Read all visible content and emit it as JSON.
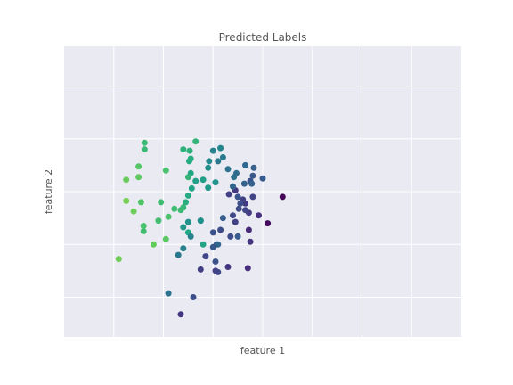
{
  "chart_data": {
    "type": "scatter",
    "title": "Predicted Labels",
    "xlabel": "feature 1",
    "ylabel": "feature 2",
    "grid": true,
    "tick_labels_visible": false,
    "colormap": "viridis",
    "points": [
      {
        "x": 1.4,
        "y": 5.8,
        "c": 0.02
      },
      {
        "x": 1.1,
        "y": 4.8,
        "c": 0.04
      },
      {
        "x": 0.92,
        "y": 5.1,
        "c": 0.18
      },
      {
        "x": 0.72,
        "y": 4.55,
        "c": 0.14
      },
      {
        "x": 0.65,
        "y": 5.55,
        "c": 0.21
      },
      {
        "x": 0.45,
        "y": 4.85,
        "c": 0.24
      },
      {
        "x": 0.4,
        "y": 5.1,
        "c": 0.27
      },
      {
        "x": 0.15,
        "y": 4.55,
        "c": 0.29
      },
      {
        "x": 0.0,
        "y": 4.45,
        "c": 0.32
      },
      {
        "x": 0.0,
        "y": 3.9,
        "c": 0.35
      },
      {
        "x": 0.07,
        "y": 4.0,
        "c": 0.33
      },
      {
        "x": 0.32,
        "y": 5.9,
        "c": 0.24
      },
      {
        "x": 0.45,
        "y": 6.05,
        "c": 0.21
      },
      {
        "x": 0.6,
        "y": 5.7,
        "c": 0.23
      },
      {
        "x": 0.8,
        "y": 5.8,
        "c": 0.25
      },
      {
        "x": 0.72,
        "y": 5.2,
        "c": 0.22
      },
      {
        "x": 0.65,
        "y": 5.3,
        "c": 0.26
      },
      {
        "x": 0.52,
        "y": 5.35,
        "c": 0.28
      },
      {
        "x": 0.55,
        "y": 5.55,
        "c": 0.3
      },
      {
        "x": 0.5,
        "y": 5.8,
        "c": 0.33
      },
      {
        "x": 0.2,
        "y": 5.0,
        "c": 0.37
      },
      {
        "x": 0.75,
        "y": 6.4,
        "c": 0.31
      },
      {
        "x": 0.8,
        "y": 6.6,
        "c": 0.34
      },
      {
        "x": 1.0,
        "y": 6.5,
        "c": 0.36
      },
      {
        "x": 0.82,
        "y": 6.9,
        "c": 0.38
      },
      {
        "x": 0.65,
        "y": 7.0,
        "c": 0.43
      },
      {
        "x": 0.78,
        "y": 6.3,
        "c": 0.39
      },
      {
        "x": 0.63,
        "y": 6.3,
        "c": 0.4
      },
      {
        "x": 0.4,
        "y": 6.2,
        "c": 0.42
      },
      {
        "x": 0.47,
        "y": 6.7,
        "c": 0.44
      },
      {
        "x": 0.42,
        "y": 6.55,
        "c": 0.46
      },
      {
        "x": 0.3,
        "y": 6.85,
        "c": 0.48
      },
      {
        "x": 0.1,
        "y": 7.15,
        "c": 0.5
      },
      {
        "x": 0.2,
        "y": 7.3,
        "c": 0.52
      },
      {
        "x": 0.0,
        "y": 7.55,
        "c": 0.55
      },
      {
        "x": 0.15,
        "y": 7.65,
        "c": 0.57
      },
      {
        "x": -0.08,
        "y": 7.15,
        "c": 0.6
      },
      {
        "x": -0.1,
        "y": 6.9,
        "c": 0.62
      },
      {
        "x": 0.05,
        "y": 6.35,
        "c": 0.65
      },
      {
        "x": -0.1,
        "y": 6.15,
        "c": 0.67
      },
      {
        "x": -0.2,
        "y": 6.45,
        "c": 0.69
      },
      {
        "x": -0.35,
        "y": 6.4,
        "c": 0.71
      },
      {
        "x": -0.43,
        "y": 6.12,
        "c": 0.73
      },
      {
        "x": -0.45,
        "y": 6.7,
        "c": 0.74
      },
      {
        "x": -0.48,
        "y": 7.15,
        "c": 0.76
      },
      {
        "x": -0.45,
        "y": 7.25,
        "c": 0.78
      },
      {
        "x": -0.47,
        "y": 7.55,
        "c": 0.8
      },
      {
        "x": -0.35,
        "y": 7.9,
        "c": 0.82
      },
      {
        "x": -0.6,
        "y": 7.6,
        "c": 0.8
      },
      {
        "x": -0.5,
        "y": 6.55,
        "c": 0.82
      },
      {
        "x": -0.5,
        "y": 5.85,
        "c": 0.76
      },
      {
        "x": -0.55,
        "y": 5.6,
        "c": 0.78
      },
      {
        "x": -0.6,
        "y": 5.4,
        "c": 0.83
      },
      {
        "x": -0.65,
        "y": 5.3,
        "c": 0.85
      },
      {
        "x": -0.78,
        "y": 5.35,
        "c": 0.87
      },
      {
        "x": -0.9,
        "y": 5.05,
        "c": 0.9
      },
      {
        "x": -1.05,
        "y": 5.6,
        "c": 0.86
      },
      {
        "x": -1.1,
        "y": 4.9,
        "c": 0.88
      },
      {
        "x": -0.95,
        "y": 4.2,
        "c": 0.93
      },
      {
        "x": -1.2,
        "y": 4.0,
        "c": 0.95
      },
      {
        "x": -1.9,
        "y": 3.45,
        "c": 0.98
      },
      {
        "x": -1.6,
        "y": 5.25,
        "c": 0.97
      },
      {
        "x": -1.75,
        "y": 5.65,
        "c": 0.99
      },
      {
        "x": -1.75,
        "y": 6.45,
        "c": 0.96
      },
      {
        "x": -1.5,
        "y": 6.55,
        "c": 0.94
      },
      {
        "x": -1.5,
        "y": 6.95,
        "c": 0.92
      },
      {
        "x": -1.45,
        "y": 5.6,
        "c": 0.91
      },
      {
        "x": -1.4,
        "y": 4.7,
        "c": 0.89
      },
      {
        "x": -1.4,
        "y": 4.5,
        "c": 0.87
      },
      {
        "x": -1.38,
        "y": 7.6,
        "c": 0.84
      },
      {
        "x": -1.38,
        "y": 7.85,
        "c": 0.85
      },
      {
        "x": -0.95,
        "y": 6.8,
        "c": 0.89
      },
      {
        "x": -0.5,
        "y": 4.45,
        "c": 0.75
      },
      {
        "x": -0.2,
        "y": 4.0,
        "c": 0.73
      },
      {
        "x": 0.1,
        "y": 4.0,
        "c": 0.42
      },
      {
        "x": 0.5,
        "y": 4.3,
        "c": 0.36
      },
      {
        "x": 0.05,
        "y": 3.35,
        "c": 0.32
      },
      {
        "x": -0.15,
        "y": 3.55,
        "c": 0.26
      },
      {
        "x": 0.3,
        "y": 3.15,
        "c": 0.2
      },
      {
        "x": 0.7,
        "y": 3.1,
        "c": 0.16
      },
      {
        "x": 0.75,
        "y": 4.1,
        "c": 0.19
      },
      {
        "x": 0.35,
        "y": 4.3,
        "c": 0.29
      },
      {
        "x": -0.25,
        "y": 4.9,
        "c": 0.6
      },
      {
        "x": -0.5,
        "y": 4.85,
        "c": 0.64
      },
      {
        "x": -0.45,
        "y": 4.3,
        "c": 0.55
      },
      {
        "x": -0.6,
        "y": 3.85,
        "c": 0.55
      },
      {
        "x": -0.25,
        "y": 4.9,
        "c": 0.62
      },
      {
        "x": -0.6,
        "y": 4.65,
        "c": 0.66
      },
      {
        "x": -0.7,
        "y": 3.6,
        "c": 0.5
      },
      {
        "x": -0.9,
        "y": 2.15,
        "c": 0.48
      },
      {
        "x": 0.1,
        "y": 2.95,
        "c": 0.27
      },
      {
        "x": 0.05,
        "y": 3.0,
        "c": 0.25
      },
      {
        "x": -0.25,
        "y": 3.05,
        "c": 0.23
      },
      {
        "x": -0.65,
        "y": 1.35,
        "c": 0.2
      },
      {
        "x": -0.4,
        "y": 2.0,
        "c": 0.3
      }
    ]
  }
}
